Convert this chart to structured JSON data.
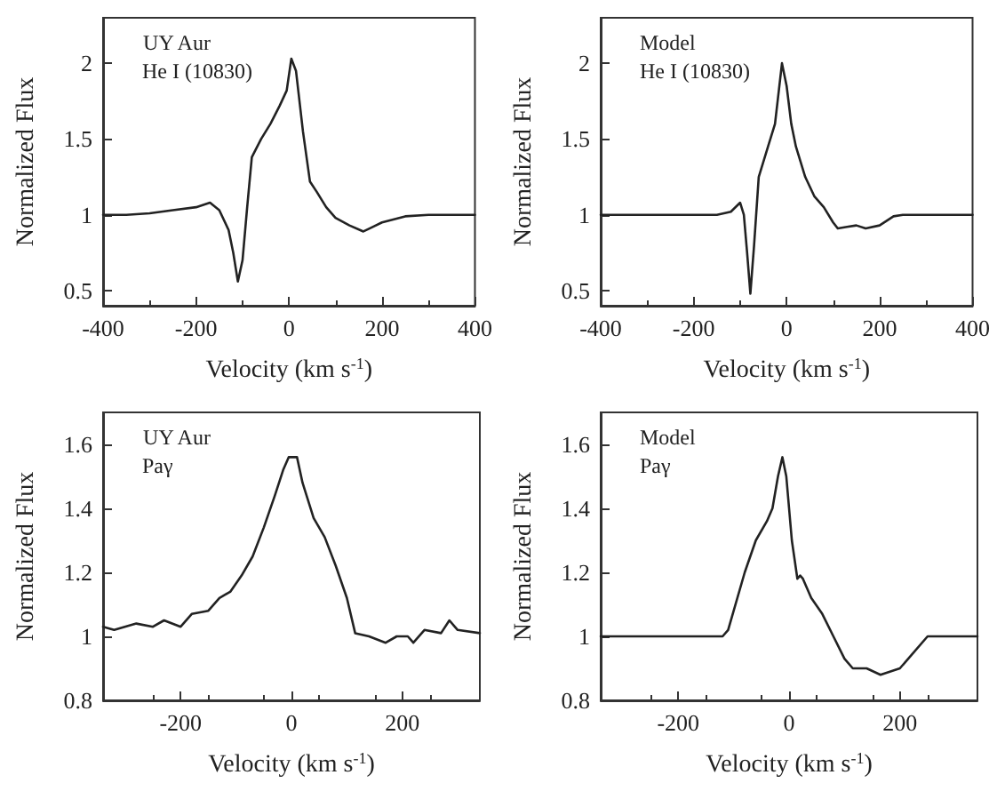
{
  "chart_data": [
    {
      "type": "line",
      "xlabel": "Velocity (km s$^{-1}$)",
      "ylabel": "Normalized Flux",
      "annotations": [
        "UY Aur",
        "He I (10830)"
      ],
      "xlim": [
        -400,
        400
      ],
      "xticks": [
        -400,
        -200,
        0,
        200,
        400
      ],
      "ylim": [
        0.4,
        2.3
      ],
      "yticks": [
        0.5,
        1,
        1.5,
        2
      ],
      "grid": false,
      "marker": "none",
      "line_style": "solid",
      "series": [
        {
          "color": "#222222",
          "x": [
            -400,
            -350,
            -300,
            -250,
            -200,
            -170,
            -150,
            -130,
            -120,
            -110,
            -100,
            -90,
            -80,
            -60,
            -40,
            -20,
            -5,
            5,
            15,
            30,
            45,
            60,
            80,
            100,
            130,
            160,
            180,
            200,
            250,
            300,
            350,
            400
          ],
          "values": [
            1.0,
            1.0,
            1.01,
            1.03,
            1.05,
            1.08,
            1.03,
            0.9,
            0.75,
            0.56,
            0.7,
            1.05,
            1.38,
            1.5,
            1.6,
            1.72,
            1.82,
            2.03,
            1.95,
            1.55,
            1.22,
            1.15,
            1.05,
            0.98,
            0.93,
            0.89,
            0.92,
            0.95,
            0.99,
            1.0,
            1.0,
            1.0
          ]
        }
      ]
    },
    {
      "type": "line",
      "xlabel": "Velocity (km s$^{-1}$)",
      "ylabel": "Normalized Flux",
      "annotations": [
        "Model",
        "He I (10830)"
      ],
      "xlim": [
        -400,
        400
      ],
      "xticks": [
        -400,
        -200,
        0,
        200,
        400
      ],
      "ylim": [
        0.4,
        2.3
      ],
      "yticks": [
        0.5,
        1,
        1.5,
        2
      ],
      "grid": false,
      "marker": "none",
      "line_style": "solid",
      "series": [
        {
          "color": "#222222",
          "x": [
            -400,
            -150,
            -120,
            -100,
            -92,
            -85,
            -78,
            -70,
            -60,
            -40,
            -25,
            -10,
            0,
            10,
            20,
            40,
            60,
            80,
            100,
            110,
            130,
            150,
            170,
            200,
            230,
            250,
            400
          ],
          "values": [
            1,
            1,
            1.02,
            1.08,
            1.0,
            0.75,
            0.48,
            0.8,
            1.25,
            1.45,
            1.6,
            2.0,
            1.85,
            1.6,
            1.45,
            1.25,
            1.12,
            1.05,
            0.95,
            0.91,
            0.92,
            0.93,
            0.91,
            0.93,
            0.99,
            1.0,
            1.0
          ]
        }
      ]
    },
    {
      "type": "line",
      "xlabel": "Velocity (km s$^{-1}$)",
      "ylabel": "Normalized Flux",
      "annotations": [
        "UY Aur",
        "Paγ"
      ],
      "xlim": [
        -340,
        340
      ],
      "xticks": [
        -200,
        0,
        200
      ],
      "ylim": [
        0.8,
        1.7
      ],
      "yticks": [
        0.8,
        1,
        1.2,
        1.4,
        1.6
      ],
      "grid": false,
      "marker": "none",
      "line_style": "solid",
      "series": [
        {
          "color": "#222222",
          "x": [
            -340,
            -320,
            -280,
            -250,
            -230,
            -200,
            -180,
            -150,
            -130,
            -110,
            -90,
            -70,
            -50,
            -30,
            -15,
            -5,
            10,
            20,
            40,
            60,
            80,
            100,
            115,
            140,
            170,
            190,
            210,
            220,
            240,
            270,
            285,
            300,
            340
          ],
          "values": [
            1.03,
            1.02,
            1.04,
            1.03,
            1.05,
            1.03,
            1.07,
            1.08,
            1.12,
            1.14,
            1.19,
            1.25,
            1.34,
            1.44,
            1.52,
            1.56,
            1.56,
            1.48,
            1.37,
            1.31,
            1.22,
            1.12,
            1.01,
            1.0,
            0.98,
            1.0,
            1.0,
            0.98,
            1.02,
            1.01,
            1.05,
            1.02,
            1.01
          ]
        }
      ]
    },
    {
      "type": "line",
      "xlabel": "Velocity (km s$^{-1}$)",
      "ylabel": "Normalized Flux",
      "annotations": [
        "Model",
        "Paγ"
      ],
      "xlim": [
        -340,
        340
      ],
      "xticks": [
        -200,
        0,
        200
      ],
      "ylim": [
        0.8,
        1.7
      ],
      "yticks": [
        0.8,
        1,
        1.2,
        1.4,
        1.6
      ],
      "grid": false,
      "marker": "none",
      "line_style": "solid",
      "series": [
        {
          "color": "#222222",
          "x": [
            -340,
            -120,
            -110,
            -80,
            -60,
            -40,
            -30,
            -20,
            -12,
            -5,
            5,
            15,
            20,
            25,
            40,
            60,
            80,
            100,
            115,
            140,
            165,
            200,
            220,
            250,
            340
          ],
          "values": [
            1,
            1,
            1.02,
            1.2,
            1.3,
            1.36,
            1.4,
            1.5,
            1.56,
            1.5,
            1.3,
            1.18,
            1.19,
            1.18,
            1.12,
            1.07,
            1.0,
            0.93,
            0.9,
            0.9,
            0.88,
            0.9,
            0.94,
            1.0,
            1.0
          ]
        }
      ]
    }
  ]
}
